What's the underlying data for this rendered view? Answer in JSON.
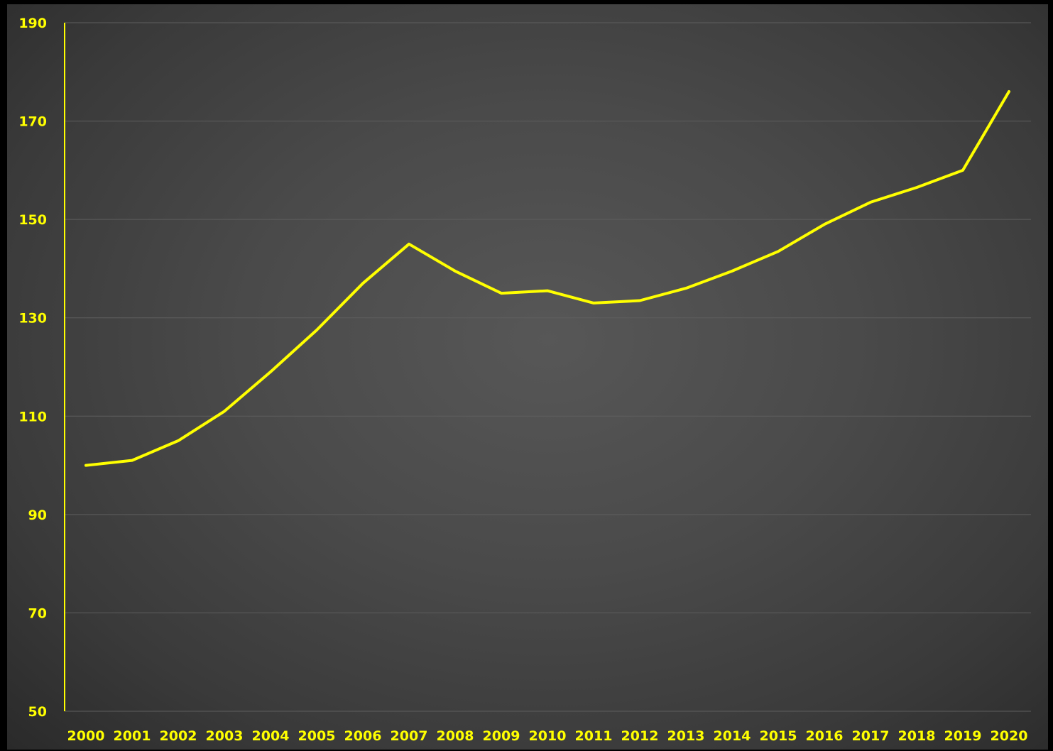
{
  "chart_data": {
    "type": "line",
    "title": "",
    "xlabel": "",
    "ylabel": "",
    "categories": [
      "2000",
      "2001",
      "2002",
      "2003",
      "2004",
      "2005",
      "2006",
      "2007",
      "2008",
      "2009",
      "2010",
      "2011",
      "2012",
      "2013",
      "2014",
      "2015",
      "2016",
      "2017",
      "2018",
      "2019",
      "2020"
    ],
    "series": [
      {
        "values": [
          100,
          101,
          105,
          111,
          119,
          127.5,
          137,
          145,
          139.5,
          135,
          135.5,
          133,
          133.5,
          136,
          139.5,
          143.5,
          149,
          153.5,
          156.5,
          160,
          176
        ]
      }
    ],
    "yticks": [
      50,
      70,
      90,
      110,
      130,
      150,
      170,
      190
    ],
    "ylim": [
      50,
      190
    ],
    "grid": true,
    "legend": "none",
    "colors": {
      "line": "#ffff00",
      "axis": "#ffff00",
      "grid": "#5e5e5e",
      "background": "#4a4a4a",
      "page": "#000000"
    }
  }
}
